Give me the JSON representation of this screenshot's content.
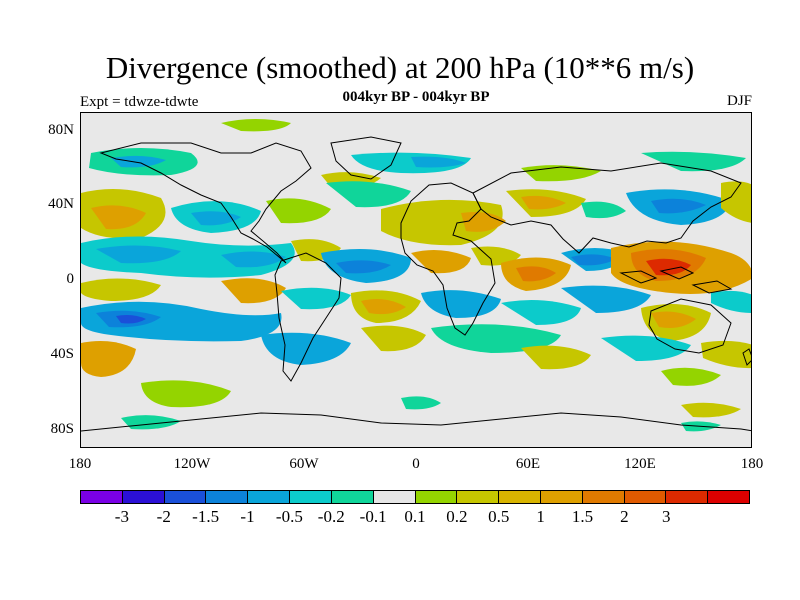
{
  "header": {
    "title": "Divergence (smoothed) at 200 hPa (10**6 m/s)",
    "subtitle": "004kyr BP - 004kyr BP",
    "experiment": "Expt = tdwze-tdwte",
    "season": "DJF"
  },
  "map": {
    "lat_labels": [
      "80N",
      "40N",
      "0",
      "40S",
      "80S"
    ],
    "lon_labels": [
      "180",
      "120W",
      "60W",
      "0",
      "60E",
      "120E",
      "180"
    ]
  },
  "colorbar": {
    "colors": [
      "#7a00e6",
      "#2b10d6",
      "#1a50d9",
      "#0c82da",
      "#0aa5da",
      "#0ccbcb",
      "#10d59a",
      "#e6e6e6",
      "#94d400",
      "#c6c600",
      "#d8b400",
      "#dea000",
      "#e07a00",
      "#e05a00",
      "#dd2a00",
      "#dd0000"
    ],
    "labels": [
      "-3",
      "-2",
      "-1.5",
      "-1",
      "-0.5",
      "-0.2",
      "-0.1",
      "0.1",
      "0.2",
      "0.5",
      "1",
      "1.5",
      "2",
      "3"
    ]
  }
}
